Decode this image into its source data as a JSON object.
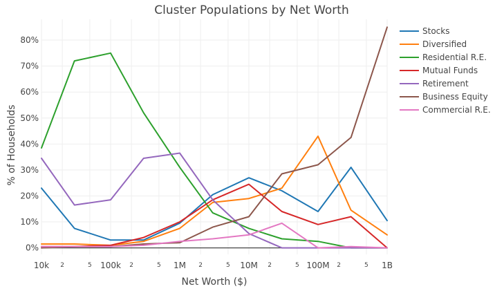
{
  "chart_data": {
    "type": "line",
    "title": "Cluster Populations by Net Worth",
    "xlabel": "Net Worth ($)",
    "ylabel": "% of Households",
    "x_scale": "log",
    "x": [
      10000,
      30000,
      100000,
      300000,
      1000000,
      3000000,
      10000000,
      30000000,
      100000000,
      300000000,
      1000000000
    ],
    "xlim": [
      10000,
      1000000000
    ],
    "ylim": [
      -2.5,
      88
    ],
    "x_ticks_major": [
      {
        "value": 10000,
        "label": "10k"
      },
      {
        "value": 100000,
        "label": "100k"
      },
      {
        "value": 1000000,
        "label": "1M"
      },
      {
        "value": 10000000,
        "label": "10M"
      },
      {
        "value": 100000000,
        "label": "100M"
      },
      {
        "value": 1000000000,
        "label": "1B"
      }
    ],
    "x_ticks_minor": [
      {
        "value": 20000,
        "label": "2"
      },
      {
        "value": 50000,
        "label": "5"
      },
      {
        "value": 200000,
        "label": "2"
      },
      {
        "value": 500000,
        "label": "5"
      },
      {
        "value": 2000000,
        "label": "2"
      },
      {
        "value": 5000000,
        "label": "5"
      },
      {
        "value": 20000000,
        "label": "2"
      },
      {
        "value": 50000000,
        "label": "5"
      },
      {
        "value": 200000000,
        "label": "2"
      },
      {
        "value": 500000000,
        "label": "5"
      }
    ],
    "y_ticks": [
      {
        "value": 0,
        "label": "0%"
      },
      {
        "value": 10,
        "label": "10%"
      },
      {
        "value": 20,
        "label": "20%"
      },
      {
        "value": 30,
        "label": "30%"
      },
      {
        "value": 40,
        "label": "40%"
      },
      {
        "value": 50,
        "label": "50%"
      },
      {
        "value": 60,
        "label": "60%"
      },
      {
        "value": 70,
        "label": "70%"
      },
      {
        "value": 80,
        "label": "80%"
      }
    ],
    "grid": true,
    "legend_position": "right",
    "series": [
      {
        "name": "Stocks",
        "color": "#1f77b4",
        "values": [
          23,
          7.5,
          3,
          3,
          9.5,
          20.5,
          27,
          22,
          14,
          31,
          10.5
        ]
      },
      {
        "name": "Diversified",
        "color": "#ff7f0e",
        "values": [
          1.5,
          1.5,
          1,
          2.5,
          7.5,
          17.5,
          19,
          23,
          43,
          14.5,
          5
        ]
      },
      {
        "name": "Residential R.E.",
        "color": "#2ca02c",
        "values": [
          38.5,
          72,
          75,
          52,
          31,
          13.5,
          7.5,
          3.5,
          2.5,
          0,
          0
        ]
      },
      {
        "name": "Mutual Funds",
        "color": "#d62728",
        "values": [
          0.5,
          0.5,
          1,
          4,
          10,
          18.5,
          24.5,
          14,
          9,
          12,
          0
        ]
      },
      {
        "name": "Retirement",
        "color": "#9467bd",
        "values": [
          34.5,
          16.5,
          18.5,
          34.5,
          36.5,
          18.5,
          5.5,
          0,
          0,
          0,
          0
        ]
      },
      {
        "name": "Business Equity",
        "color": "#8c564b",
        "values": [
          0,
          0.5,
          0.5,
          1.5,
          2,
          8,
          12,
          28.5,
          32,
          42.5,
          85
        ]
      },
      {
        "name": "Commercial R.E.",
        "color": "#e377c2",
        "values": [
          0.5,
          0.5,
          0.5,
          1,
          2.5,
          3.5,
          5,
          9.5,
          0,
          0.5,
          0
        ]
      }
    ]
  }
}
